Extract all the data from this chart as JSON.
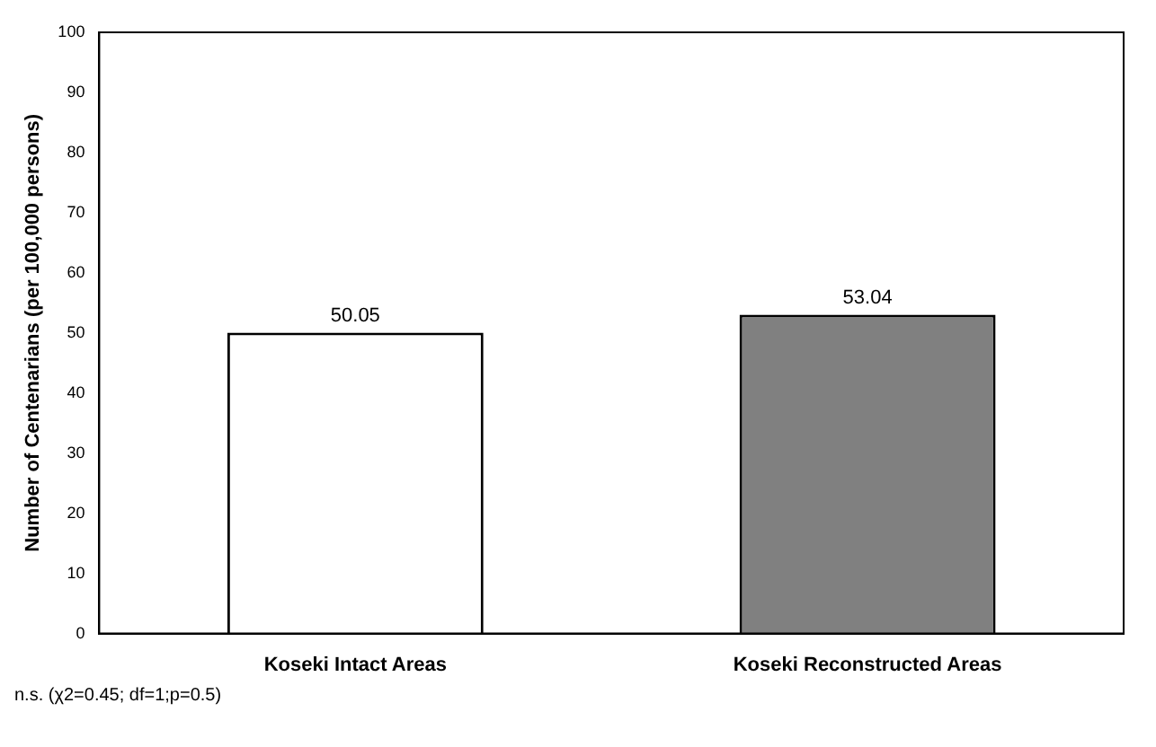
{
  "chart_data": {
    "type": "bar",
    "ylabel": "Number of Centenarians (per 100,000 persons)",
    "categories": [
      "Koseki Intact Areas",
      "Koseki Reconstructed Areas"
    ],
    "values": [
      50.05,
      53.04
    ],
    "colors": [
      "#ffffff",
      "#808080"
    ],
    "ylim": [
      0,
      100
    ],
    "yticks": [
      0,
      10,
      20,
      30,
      40,
      50,
      60,
      70,
      80,
      90,
      100
    ],
    "data_labels": true,
    "grid": false,
    "legend": false,
    "annotations": [
      "n.s. (χ2=0.45; df=1;p=0.5)"
    ]
  }
}
